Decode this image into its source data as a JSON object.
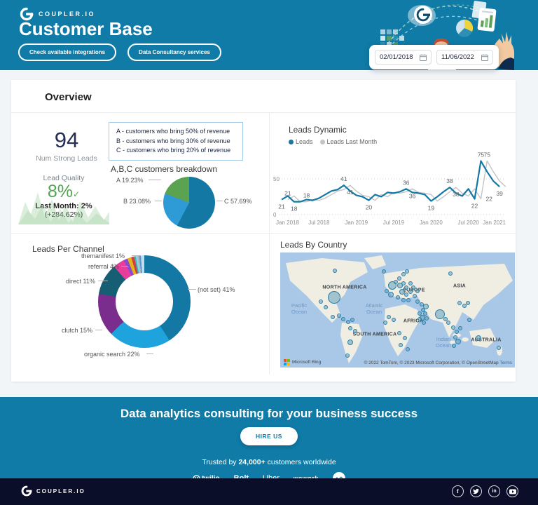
{
  "header": {
    "brand": "COUPLER.IO",
    "title": "Customer Base",
    "buttons": [
      {
        "label": "Check available integrations"
      },
      {
        "label": "Data Consultancy services"
      }
    ],
    "date_from": "02/01/2018",
    "date_to": "11/06/2022"
  },
  "overview": {
    "title": "Overview",
    "strong_leads": {
      "value": "94",
      "label": "Num Strong Leads"
    },
    "legend_box": [
      "A - customers who bring 50% of revenue",
      "B - customers who bring 30% of revenue",
      "C - customers who bring 20% of revenue"
    ],
    "lead_quality": {
      "label": "Lead Quality",
      "value": "8%",
      "check": "✓",
      "last_month": "Last Month: 2%",
      "change": "(+284.62%)"
    }
  },
  "chart_data": [
    {
      "type": "pie",
      "title": "A,B,C customers breakdown",
      "slices": [
        {
          "label": "C 57.69%",
          "value": 57.69,
          "color": "#1478A5"
        },
        {
          "label": "B 23.08%",
          "value": 23.08,
          "color": "#2E9BD6"
        },
        {
          "label": "A 19.23%",
          "value": 19.23,
          "color": "#5CA351"
        }
      ]
    },
    {
      "type": "line",
      "title": "Leads Dynamic",
      "legend": [
        {
          "name": "Leads",
          "color": "#1478A5"
        },
        {
          "name": "Leads Last Month",
          "color": "#C4C4C4"
        }
      ],
      "x_ticks": [
        "Jan 2018",
        "Jul 2018",
        "Jan 2019",
        "Jul 2019",
        "Jan 2020",
        "Jul 2020",
        "Jan 2021"
      ],
      "y_ticks": [
        50,
        0
      ],
      "series": [
        {
          "name": "Leads",
          "color": "#1478A5",
          "shift": 0,
          "width": 2.2,
          "values": [
            21,
            26,
            18,
            18,
            21,
            20,
            23,
            28,
            33,
            35,
            41,
            33,
            27,
            25,
            20,
            28,
            25,
            31,
            30,
            32,
            36,
            31,
            30,
            28,
            19,
            25,
            32,
            38,
            30,
            26,
            36,
            22,
            75,
            60,
            47,
            39
          ]
        },
        {
          "name": "Leads Last Month",
          "color": "#C4C4C4",
          "shift": 1,
          "width": 1.4,
          "values": [
            21,
            26,
            18,
            18,
            21,
            20,
            23,
            28,
            33,
            35,
            41,
            33,
            27,
            25,
            20,
            28,
            25,
            31,
            30,
            32,
            36,
            31,
            30,
            28,
            19,
            25,
            32,
            38,
            30,
            26,
            36,
            22,
            75,
            60,
            47,
            39
          ]
        }
      ],
      "point_labels": [
        {
          "x": 0,
          "v": 21,
          "pos": "below"
        },
        {
          "x": 1,
          "v": 21,
          "pos": "above"
        },
        {
          "x": 2,
          "v": 18,
          "pos": "below"
        },
        {
          "x": 4,
          "v": 18,
          "pos": "above"
        },
        {
          "x": 10,
          "v": 41,
          "pos": "above"
        },
        {
          "x": 11,
          "v": 41,
          "pos": "below"
        },
        {
          "x": 14,
          "v": 20,
          "pos": "below"
        },
        {
          "x": 20,
          "v": 36,
          "pos": "above"
        },
        {
          "x": 21,
          "v": 36,
          "pos": "below"
        },
        {
          "x": 24,
          "v": 19,
          "pos": "below"
        },
        {
          "x": 27,
          "v": 38,
          "pos": "above"
        },
        {
          "x": 28,
          "v": 38,
          "pos": "below"
        },
        {
          "x": 31,
          "v": 22,
          "pos": "below"
        },
        {
          "x": 32,
          "v": 22,
          "pos": "right"
        },
        {
          "x": 32,
          "v": 75,
          "pos": "above"
        },
        {
          "x": 33,
          "v": 75,
          "pos": "above"
        },
        {
          "x": 35,
          "v": 39,
          "pos": "below"
        }
      ]
    },
    {
      "type": "donut",
      "title": "Leads Per Channel",
      "slices": [
        {
          "label": "(not set) 41%",
          "value": 41,
          "color": "#1478A5"
        },
        {
          "label": "organic search 22%",
          "value": 22,
          "color": "#1FA3DC"
        },
        {
          "label": "clutch 15%",
          "value": 15,
          "color": "#7B2D8E"
        },
        {
          "label": "direct 11%",
          "value": 11,
          "color": "#155E74"
        },
        {
          "label": "referral 4%",
          "value": 4,
          "color": "#E83E9B"
        },
        {
          "label": "themanifest 1%",
          "value": 1.4,
          "color": "#8A4BD0"
        },
        {
          "label": "",
          "value": 1.4,
          "color": "#E5B314"
        },
        {
          "label": "",
          "value": 1.0,
          "color": "#D23C46"
        },
        {
          "label": "",
          "value": 0.6,
          "color": "#3FB5AD"
        },
        {
          "label": "",
          "value": 0.6,
          "color": "#8ED4EE"
        },
        {
          "label": "",
          "value": 0.6,
          "color": "#ADB9C2"
        },
        {
          "label": "",
          "value": 0.6,
          "color": "#5A94D8"
        },
        {
          "label": "",
          "value": 1.2,
          "color": "#BFE0E8"
        }
      ]
    },
    {
      "type": "map",
      "title": "Leads By Country",
      "continents": [
        {
          "name": "NORTH AMERICA",
          "x": 92,
          "y": 50
        },
        {
          "name": "SOUTH AMERICA",
          "x": 135,
          "y": 117
        },
        {
          "name": "EUROPE",
          "x": 191,
          "y": 54
        },
        {
          "name": "AFRICA",
          "x": 190,
          "y": 98
        },
        {
          "name": "ASIA",
          "x": 256,
          "y": 48
        },
        {
          "name": "AUSTRALIA",
          "x": 294,
          "y": 125
        }
      ],
      "oceans": [
        {
          "name": "Pacific\nOcean",
          "x": 27,
          "y": 80
        },
        {
          "name": "Atlantic\nOcean",
          "x": 134,
          "y": 80
        },
        {
          "name": "Indian\nOcean",
          "x": 233,
          "y": 128
        }
      ],
      "attribution": "© 2022 TomTom, © 2023 Microsoft Corporation, © OpenStreetMap",
      "terms": "Terms",
      "bing": "Microsoft Bing",
      "bubbles": [
        [
          78,
          26,
          3
        ],
        [
          77,
          64,
          9
        ],
        [
          58,
          70,
          3
        ],
        [
          65,
          78,
          3
        ],
        [
          75,
          92,
          3
        ],
        [
          84,
          90,
          3
        ],
        [
          90,
          95,
          3
        ],
        [
          97,
          99,
          3
        ],
        [
          103,
          96,
          3
        ],
        [
          100,
          108,
          3
        ],
        [
          107,
          112,
          3
        ],
        [
          100,
          128,
          4
        ],
        [
          96,
          147,
          3
        ],
        [
          148,
          27,
          3
        ],
        [
          160,
          47,
          6
        ],
        [
          152,
          55,
          3
        ],
        [
          158,
          60,
          4
        ],
        [
          165,
          42,
          3
        ],
        [
          170,
          37,
          3
        ],
        [
          176,
          31,
          3
        ],
        [
          181,
          27,
          3
        ],
        [
          171,
          47,
          4
        ],
        [
          176,
          44,
          3
        ],
        [
          180,
          50,
          3
        ],
        [
          174,
          56,
          4
        ],
        [
          180,
          60,
          3
        ],
        [
          186,
          56,
          3
        ],
        [
          190,
          50,
          3
        ],
        [
          186,
          44,
          3
        ],
        [
          192,
          62,
          3
        ],
        [
          196,
          55,
          3
        ],
        [
          168,
          64,
          3
        ],
        [
          176,
          68,
          3
        ],
        [
          183,
          68,
          3
        ],
        [
          243,
          30,
          3
        ],
        [
          196,
          70,
          3
        ],
        [
          202,
          74,
          3
        ],
        [
          208,
          77,
          4
        ],
        [
          204,
          82,
          3
        ],
        [
          199,
          87,
          3
        ],
        [
          207,
          87,
          3
        ],
        [
          203,
          93,
          4
        ],
        [
          209,
          94,
          3
        ],
        [
          199,
          95,
          3
        ],
        [
          205,
          100,
          3
        ],
        [
          155,
          92,
          3
        ],
        [
          162,
          96,
          3
        ],
        [
          150,
          100,
          3
        ],
        [
          170,
          115,
          3
        ],
        [
          178,
          122,
          3
        ],
        [
          172,
          132,
          3
        ],
        [
          182,
          138,
          3
        ],
        [
          228,
          88,
          7
        ],
        [
          236,
          95,
          3
        ],
        [
          240,
          100,
          3
        ],
        [
          247,
          107,
          3
        ],
        [
          252,
          113,
          3
        ],
        [
          257,
          108,
          3
        ],
        [
          250,
          121,
          3
        ],
        [
          254,
          127,
          4
        ],
        [
          248,
          133,
          3
        ],
        [
          256,
          72,
          3
        ],
        [
          263,
          76,
          3
        ],
        [
          268,
          72,
          3
        ],
        [
          270,
          96,
          3
        ],
        [
          283,
          122,
          4
        ],
        [
          312,
          136,
          3
        ]
      ]
    }
  ],
  "footer": {
    "headline": "Data analytics consulting for your business success",
    "cta": "HIRE US",
    "trusted_prefix": "Trusted by ",
    "trusted_bold": "24,000+",
    "trusted_suffix": " customers worldwide",
    "partners": [
      {
        "name": "twilio"
      },
      {
        "name": "Bolt"
      },
      {
        "name": "Uber"
      },
      {
        "name": "wework"
      }
    ]
  },
  "bottom_bar": {
    "brand": "COUPLER.IO",
    "socials": [
      "facebook",
      "twitter",
      "linkedin",
      "youtube"
    ]
  }
}
